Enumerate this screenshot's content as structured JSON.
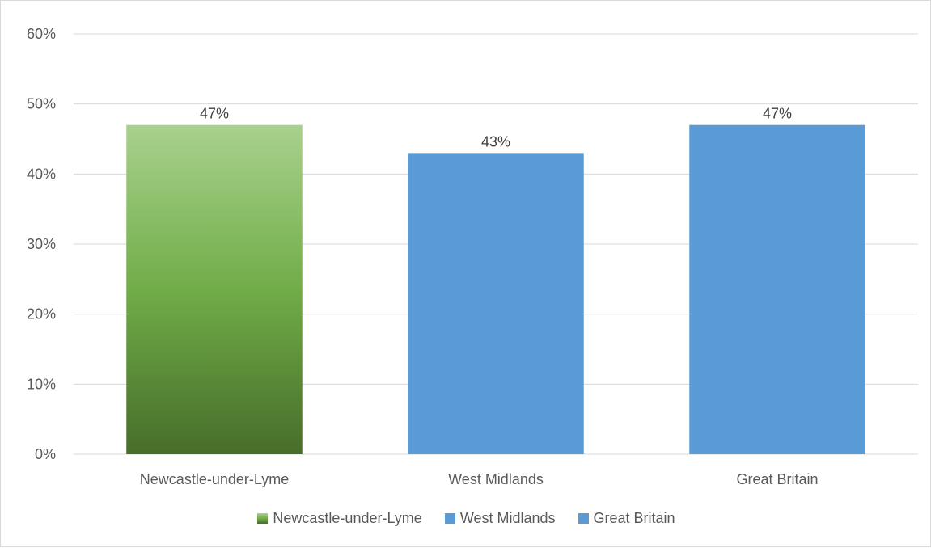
{
  "chart_data": {
    "type": "bar",
    "title": "",
    "xlabel": "",
    "ylabel": "",
    "categories": [
      "Newcastle-under-Lyme",
      "West Midlands",
      "Great Britain"
    ],
    "values": [
      47,
      43,
      47
    ],
    "value_labels": [
      "47%",
      "43%",
      "47%"
    ],
    "ylim": [
      0,
      60
    ],
    "yticks": [
      0,
      10,
      20,
      30,
      40,
      50,
      60
    ],
    "ytick_labels": [
      "0%",
      "10%",
      "20%",
      "30%",
      "40%",
      "50%",
      "60%"
    ],
    "grid": true,
    "legend_position": "bottom",
    "series": [
      {
        "name": "Newcastle-under-Lyme",
        "color": "#70ad47",
        "gradient": [
          "#a9d18e",
          "#70ad47",
          "#476d2a"
        ]
      },
      {
        "name": "West Midlands",
        "color": "#5b9bd5"
      },
      {
        "name": "Great Britain",
        "color": "#5b9bd5"
      }
    ],
    "colors": {
      "gridline": "#d9d9d9",
      "text": "#595959"
    }
  }
}
